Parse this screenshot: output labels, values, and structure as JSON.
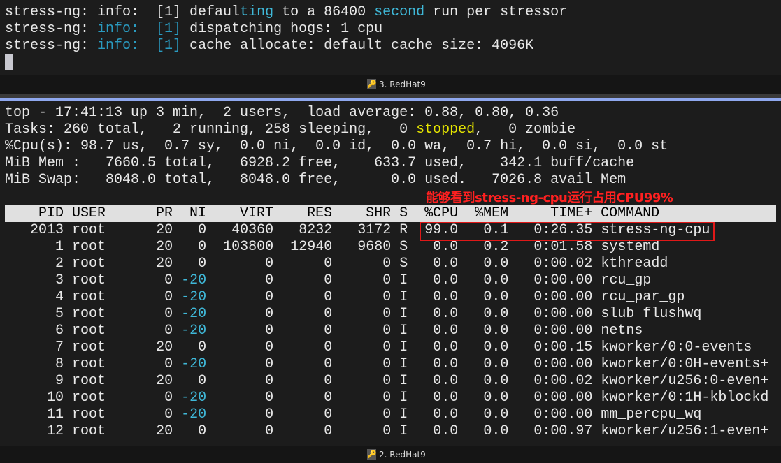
{
  "top_pane": {
    "lines": [
      {
        "prefix": "stress-ng: info:  [1] defaul",
        "hl1": "ting",
        "mid": " to a 86400 ",
        "hl2": "second",
        "suffix": " run per stressor"
      },
      {
        "a": "stress-ng: ",
        "b": "info:  [1]",
        "c": " dispatching hogs: 1 cpu"
      },
      {
        "a": "stress-ng: ",
        "b": "info:  [1]",
        "c": " cache allocate: default cache size: 4096K"
      }
    ],
    "tab_label": "3. RedHat9"
  },
  "top_summary": {
    "line1": "top - 17:41:13 up 3 min,  2 users,  load average: 0.88, 0.80, 0.36",
    "line2_a": "Tasks: 260 total,   2 running, 258 sleeping,   0 ",
    "line2_stopped": "stopped",
    "line2_b": ",   0 zombie",
    "line3": "%Cpu(s): 98.7 us,  0.7 sy,  0.0 ni,  0.0 id,  0.0 wa,  0.7 hi,  0.0 si,  0.0 st",
    "line4": "MiB Mem :   7660.5 total,   6928.2 free,    633.7 used,    342.1 buff/cache",
    "line5": "MiB Swap:   8048.0 total,   8048.0 free,      0.0 used.   7026.8 avail Mem"
  },
  "annotation": "能够看到stress-ng-cpu运行占用CPU99%",
  "table": {
    "header": "    PID USER      PR  NI    VIRT    RES    SHR S  %CPU  %MEM     TIME+ COMMAND",
    "rows": [
      [
        "2013",
        "root",
        "20",
        "0",
        "40360",
        "8232",
        "3172",
        "R",
        "99.0",
        "0.1",
        "0:26.35",
        "stress-ng-cpu"
      ],
      [
        "1",
        "root",
        "20",
        "0",
        "103800",
        "12940",
        "9680",
        "S",
        "0.0",
        "0.2",
        "0:01.58",
        "systemd"
      ],
      [
        "2",
        "root",
        "20",
        "0",
        "0",
        "0",
        "0",
        "S",
        "0.0",
        "0.0",
        "0:00.02",
        "kthreadd"
      ],
      [
        "3",
        "root",
        "0",
        "-20",
        "0",
        "0",
        "0",
        "I",
        "0.0",
        "0.0",
        "0:00.00",
        "rcu_gp"
      ],
      [
        "4",
        "root",
        "0",
        "-20",
        "0",
        "0",
        "0",
        "I",
        "0.0",
        "0.0",
        "0:00.00",
        "rcu_par_gp"
      ],
      [
        "5",
        "root",
        "0",
        "-20",
        "0",
        "0",
        "0",
        "I",
        "0.0",
        "0.0",
        "0:00.00",
        "slub_flushwq"
      ],
      [
        "6",
        "root",
        "0",
        "-20",
        "0",
        "0",
        "0",
        "I",
        "0.0",
        "0.0",
        "0:00.00",
        "netns"
      ],
      [
        "7",
        "root",
        "20",
        "0",
        "0",
        "0",
        "0",
        "I",
        "0.0",
        "0.0",
        "0:00.15",
        "kworker/0:0-events"
      ],
      [
        "8",
        "root",
        "0",
        "-20",
        "0",
        "0",
        "0",
        "I",
        "0.0",
        "0.0",
        "0:00.00",
        "kworker/0:0H-events+"
      ],
      [
        "9",
        "root",
        "20",
        "0",
        "0",
        "0",
        "0",
        "I",
        "0.0",
        "0.0",
        "0:00.02",
        "kworker/u256:0-even+"
      ],
      [
        "10",
        "root",
        "0",
        "-20",
        "0",
        "0",
        "0",
        "I",
        "0.0",
        "0.0",
        "0:00.00",
        "kworker/0:1H-kblockd"
      ],
      [
        "11",
        "root",
        "0",
        "-20",
        "0",
        "0",
        "0",
        "I",
        "0.0",
        "0.0",
        "0:00.00",
        "mm_percpu_wq"
      ],
      [
        "12",
        "root",
        "20",
        "0",
        "0",
        "0",
        "0",
        "I",
        "0.0",
        "0.0",
        "0:00.97",
        "kworker/u256:1-even+"
      ]
    ],
    "accent_ni_color": "#3fb8d8",
    "highlight_color": "#e01818"
  },
  "bottom_tab_label": "2. RedHat9"
}
